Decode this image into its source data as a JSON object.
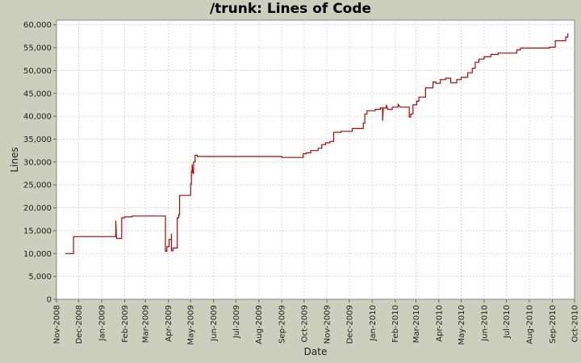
{
  "chart_data": {
    "type": "line",
    "title": "/trunk: Lines of Code",
    "xlabel": "Date",
    "ylabel": "Lines",
    "ylim": [
      0,
      61000
    ],
    "y_ticks": [
      0,
      5000,
      10000,
      15000,
      20000,
      25000,
      30000,
      35000,
      40000,
      45000,
      50000,
      55000,
      60000
    ],
    "y_tick_labels": [
      "0",
      "5,000",
      "10,000",
      "15,000",
      "20,000",
      "25,000",
      "30,000",
      "35,000",
      "40,000",
      "45,000",
      "50,000",
      "55,000",
      "60,000"
    ],
    "xlim": [
      "2008-11-01",
      "2010-10-01"
    ],
    "x_ticks": [
      "2008-11-01",
      "2008-12-01",
      "2009-01-01",
      "2009-02-01",
      "2009-03-01",
      "2009-04-01",
      "2009-05-01",
      "2009-06-01",
      "2009-07-01",
      "2009-08-01",
      "2009-09-01",
      "2009-10-01",
      "2009-11-01",
      "2009-12-01",
      "2010-01-01",
      "2010-02-01",
      "2010-03-01",
      "2010-04-01",
      "2010-05-01",
      "2010-06-01",
      "2010-07-01",
      "2010-08-01",
      "2010-09-01",
      "2010-10-01"
    ],
    "x_tick_labels": [
      "Nov-2008",
      "Dec-2008",
      "Jan-2009",
      "Feb-2009",
      "Mar-2009",
      "Apr-2009",
      "May-2009",
      "Jun-2009",
      "Jul-2009",
      "Aug-2009",
      "Sep-2009",
      "Oct-2009",
      "Nov-2009",
      "Dec-2009",
      "Jan-2010",
      "Feb-2010",
      "Mar-2010",
      "Apr-2010",
      "May-2010",
      "Jun-2010",
      "Jul-2010",
      "Aug-2010",
      "Sep-2010",
      "Oct-2010"
    ],
    "grid": true,
    "series": [
      {
        "color": "#bb0000",
        "points": [
          [
            "2008-11-13",
            10000
          ],
          [
            "2008-11-24",
            10000
          ],
          [
            "2008-11-24",
            13700
          ],
          [
            "2009-01-20",
            13700
          ],
          [
            "2009-01-20",
            17200
          ],
          [
            "2009-01-21",
            13300
          ],
          [
            "2009-01-28",
            13300
          ],
          [
            "2009-01-28",
            17800
          ],
          [
            "2009-02-01",
            17800
          ],
          [
            "2009-02-01",
            18000
          ],
          [
            "2009-02-11",
            18000
          ],
          [
            "2009-02-11",
            18200
          ],
          [
            "2009-03-28",
            18200
          ],
          [
            "2009-03-28",
            10500
          ],
          [
            "2009-03-30",
            10500
          ],
          [
            "2009-03-30",
            11500
          ],
          [
            "2009-04-02",
            11500
          ],
          [
            "2009-04-02",
            13100
          ],
          [
            "2009-04-05",
            13100
          ],
          [
            "2009-04-05",
            14300
          ],
          [
            "2009-04-05",
            10600
          ],
          [
            "2009-04-07",
            10600
          ],
          [
            "2009-04-07",
            11200
          ],
          [
            "2009-04-13",
            11200
          ],
          [
            "2009-04-13",
            17800
          ],
          [
            "2009-04-15",
            17800
          ],
          [
            "2009-04-15",
            18500
          ],
          [
            "2009-04-16",
            18500
          ],
          [
            "2009-04-16",
            22700
          ],
          [
            "2009-05-01",
            22700
          ],
          [
            "2009-05-01",
            25200
          ],
          [
            "2009-05-02",
            25200
          ],
          [
            "2009-05-02",
            28000
          ],
          [
            "2009-05-03",
            28000
          ],
          [
            "2009-05-03",
            29500
          ],
          [
            "2009-05-04",
            27500
          ],
          [
            "2009-05-05",
            27500
          ],
          [
            "2009-05-05",
            30000
          ],
          [
            "2009-05-07",
            30000
          ],
          [
            "2009-05-07",
            31500
          ],
          [
            "2009-05-10",
            31500
          ],
          [
            "2009-05-10",
            31200
          ],
          [
            "2009-09-01",
            31200
          ],
          [
            "2009-09-01",
            31000
          ],
          [
            "2009-09-30",
            31000
          ],
          [
            "2009-09-30",
            31800
          ],
          [
            "2009-10-04",
            31800
          ],
          [
            "2009-10-04",
            32000
          ],
          [
            "2009-10-10",
            32000
          ],
          [
            "2009-10-10",
            32500
          ],
          [
            "2009-10-20",
            32500
          ],
          [
            "2009-10-20",
            33000
          ],
          [
            "2009-10-25",
            33000
          ],
          [
            "2009-10-25",
            33800
          ],
          [
            "2009-10-30",
            33800
          ],
          [
            "2009-10-30",
            34200
          ],
          [
            "2009-11-05",
            34200
          ],
          [
            "2009-11-05",
            34500
          ],
          [
            "2009-11-10",
            34500
          ],
          [
            "2009-11-10",
            36500
          ],
          [
            "2009-11-20",
            36500
          ],
          [
            "2009-11-20",
            36700
          ],
          [
            "2009-12-05",
            36700
          ],
          [
            "2009-12-05",
            37300
          ],
          [
            "2009-12-20",
            37300
          ],
          [
            "2009-12-20",
            38500
          ],
          [
            "2009-12-22",
            38500
          ],
          [
            "2009-12-22",
            40500
          ],
          [
            "2009-12-25",
            40500
          ],
          [
            "2009-12-25",
            41200
          ],
          [
            "2010-01-05",
            41200
          ],
          [
            "2010-01-05",
            41500
          ],
          [
            "2010-01-12",
            41500
          ],
          [
            "2010-01-12",
            41800
          ],
          [
            "2010-01-15",
            41800
          ],
          [
            "2010-01-15",
            39000
          ],
          [
            "2010-01-16",
            41800
          ],
          [
            "2010-01-20",
            41800
          ],
          [
            "2010-01-20",
            42500
          ],
          [
            "2010-01-22",
            41500
          ],
          [
            "2010-01-28",
            41500
          ],
          [
            "2010-01-28",
            42000
          ],
          [
            "2010-02-05",
            42000
          ],
          [
            "2010-02-05",
            42600
          ],
          [
            "2010-02-08",
            42000
          ],
          [
            "2010-02-20",
            42000
          ],
          [
            "2010-02-20",
            39800
          ],
          [
            "2010-02-22",
            39800
          ],
          [
            "2010-02-22",
            40500
          ],
          [
            "2010-02-25",
            40500
          ],
          [
            "2010-02-25",
            42500
          ],
          [
            "2010-03-02",
            42500
          ],
          [
            "2010-03-02",
            43300
          ],
          [
            "2010-03-05",
            43300
          ],
          [
            "2010-03-05",
            44200
          ],
          [
            "2010-03-14",
            44200
          ],
          [
            "2010-03-14",
            46200
          ],
          [
            "2010-03-24",
            46200
          ],
          [
            "2010-03-24",
            47500
          ],
          [
            "2010-03-28",
            47500
          ],
          [
            "2010-03-28",
            47200
          ],
          [
            "2010-04-03",
            47200
          ],
          [
            "2010-04-03",
            48000
          ],
          [
            "2010-04-10",
            48000
          ],
          [
            "2010-04-10",
            48300
          ],
          [
            "2010-04-17",
            48300
          ],
          [
            "2010-04-17",
            47300
          ],
          [
            "2010-04-25",
            47300
          ],
          [
            "2010-04-25",
            48000
          ],
          [
            "2010-05-01",
            48000
          ],
          [
            "2010-05-01",
            48500
          ],
          [
            "2010-05-10",
            48500
          ],
          [
            "2010-05-10",
            49500
          ],
          [
            "2010-05-16",
            49500
          ],
          [
            "2010-05-16",
            50500
          ],
          [
            "2010-05-20",
            50500
          ],
          [
            "2010-05-20",
            51800
          ],
          [
            "2010-05-25",
            51800
          ],
          [
            "2010-05-25",
            52500
          ],
          [
            "2010-06-01",
            52500
          ],
          [
            "2010-06-01",
            53000
          ],
          [
            "2010-06-10",
            53000
          ],
          [
            "2010-06-10",
            53500
          ],
          [
            "2010-06-20",
            53500
          ],
          [
            "2010-06-20",
            53800
          ],
          [
            "2010-07-15",
            53800
          ],
          [
            "2010-07-15",
            54500
          ],
          [
            "2010-07-20",
            54500
          ],
          [
            "2010-07-20",
            54900
          ],
          [
            "2010-08-28",
            54900
          ],
          [
            "2010-08-28",
            55100
          ],
          [
            "2010-09-05",
            55100
          ],
          [
            "2010-09-05",
            56500
          ],
          [
            "2010-09-19",
            56500
          ],
          [
            "2010-09-19",
            57300
          ],
          [
            "2010-09-22",
            57300
          ],
          [
            "2010-09-22",
            58100
          ]
        ]
      }
    ]
  }
}
